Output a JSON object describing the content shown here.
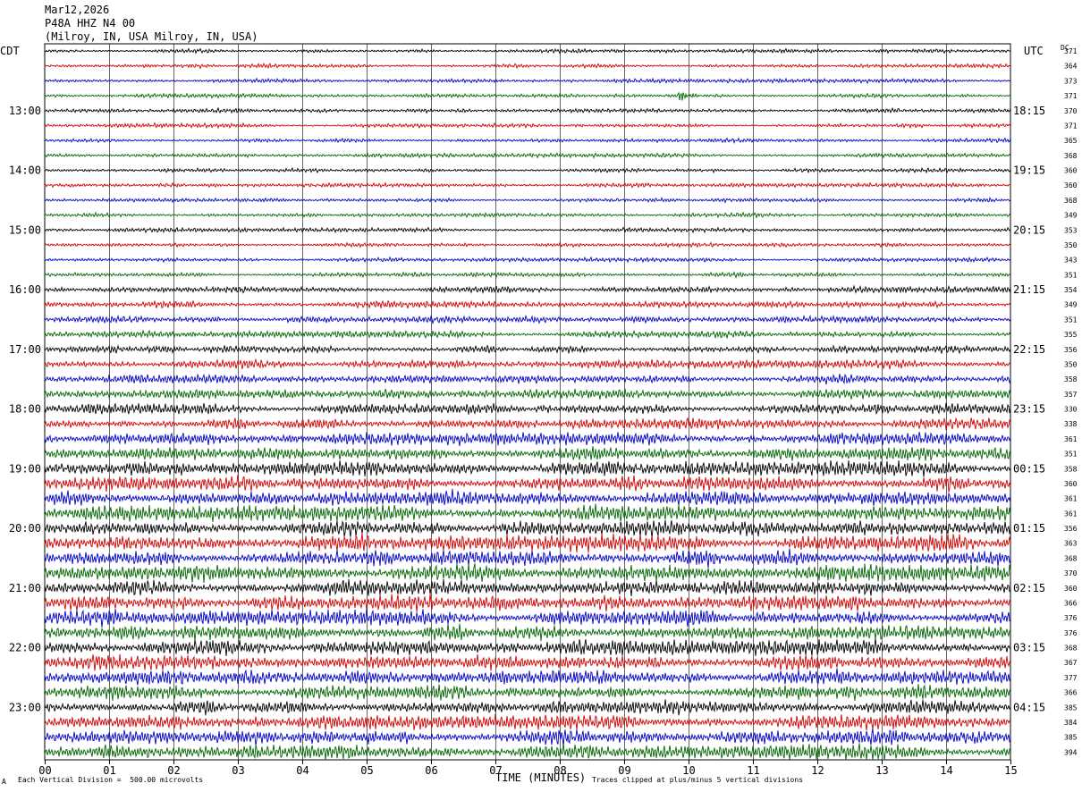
{
  "header": {
    "date": "Mar12,2026",
    "station": "P48A HHZ N4 00",
    "location": "(Milroy, IN, USA Milroy, IN, USA)"
  },
  "labels": {
    "left_tz": "CDT",
    "right_tz": "UTC",
    "dc_header": "DC",
    "x_title": "TIME (MINUTES)",
    "scale_note": "Each Vertical Division =  500.00 microvolts",
    "clip_note": "Traces clipped at plus/minus 5 vertical divisions",
    "corner_mark": "A"
  },
  "chart_data": {
    "type": "line",
    "subtype": "helicorder",
    "xlim": [
      0,
      15
    ],
    "x_ticks": [
      "00",
      "01",
      "02",
      "03",
      "04",
      "05",
      "06",
      "07",
      "08",
      "09",
      "10",
      "11",
      "12",
      "13",
      "14",
      "15"
    ],
    "trace_count": 48,
    "trace_minutes": 15,
    "trace_colors": [
      "#000000",
      "#d00000",
      "#0000c8",
      "#006400"
    ],
    "left_time_labels": [
      {
        "trace": 4,
        "text": "13:00"
      },
      {
        "trace": 8,
        "text": "14:00"
      },
      {
        "trace": 12,
        "text": "15:00"
      },
      {
        "trace": 16,
        "text": "16:00"
      },
      {
        "trace": 20,
        "text": "17:00"
      },
      {
        "trace": 24,
        "text": "18:00"
      },
      {
        "trace": 28,
        "text": "19:00"
      },
      {
        "trace": 32,
        "text": "20:00"
      },
      {
        "trace": 36,
        "text": "21:00"
      },
      {
        "trace": 40,
        "text": "22:00"
      },
      {
        "trace": 44,
        "text": "23:00"
      }
    ],
    "right_time_labels": [
      {
        "trace": 4,
        "text": "18:15"
      },
      {
        "trace": 8,
        "text": "19:15"
      },
      {
        "trace": 12,
        "text": "20:15"
      },
      {
        "trace": 16,
        "text": "21:15"
      },
      {
        "trace": 20,
        "text": "22:15"
      },
      {
        "trace": 24,
        "text": "23:15"
      },
      {
        "trace": 28,
        "text": "00:15"
      },
      {
        "trace": 32,
        "text": "01:15"
      },
      {
        "trace": 36,
        "text": "02:15"
      },
      {
        "trace": 40,
        "text": "03:15"
      },
      {
        "trace": 44,
        "text": "04:15"
      }
    ],
    "dc_offsets": [
      371,
      364,
      373,
      371,
      370,
      371,
      365,
      368,
      360,
      360,
      368,
      349,
      353,
      350,
      343,
      351,
      354,
      349,
      351,
      355,
      356,
      350,
      358,
      357,
      330,
      338,
      361,
      351,
      358,
      360,
      361,
      361,
      356,
      363,
      368,
      370,
      360,
      366,
      376,
      376,
      368,
      367,
      377,
      366,
      385,
      384,
      385,
      394
    ],
    "relative_amplitude": [
      0.6,
      0.6,
      0.6,
      0.6,
      0.6,
      0.6,
      0.6,
      0.6,
      0.6,
      0.6,
      0.6,
      0.6,
      0.6,
      0.6,
      0.6,
      0.7,
      0.9,
      1.0,
      1.0,
      1.0,
      1.1,
      1.2,
      1.3,
      1.4,
      1.6,
      1.7,
      1.8,
      2.0,
      2.2,
      2.3,
      2.3,
      2.3,
      2.3,
      2.4,
      2.5,
      2.4,
      2.3,
      2.3,
      2.3,
      2.3,
      2.2,
      2.2,
      2.2,
      2.1,
      2.1,
      2.1,
      2.2,
      2.2
    ],
    "events": [
      {
        "trace": 3,
        "minute": 9.9
      }
    ]
  }
}
